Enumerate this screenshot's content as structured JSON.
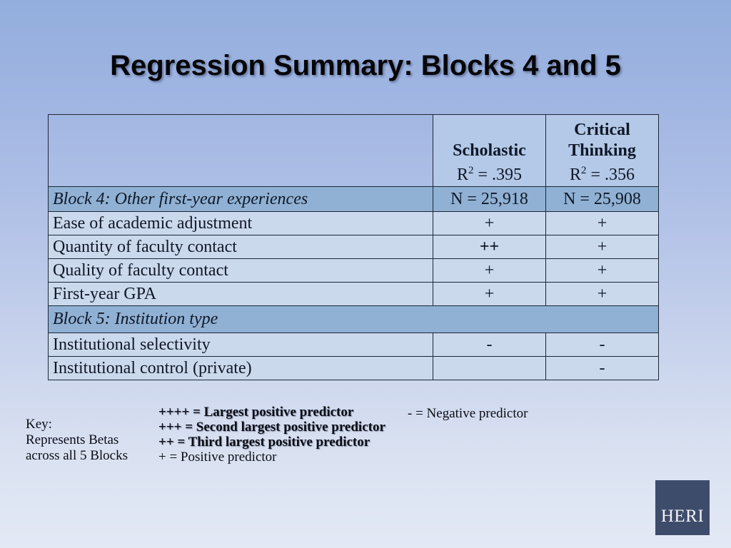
{
  "title": "Regression Summary: Blocks 4 and 5",
  "table": {
    "columns": {
      "scholastic": {
        "title": "Scholastic",
        "r2_base": "R",
        "r2_sup": "2",
        "r2_rest": " = .395"
      },
      "critical": {
        "title": "Critical Thinking",
        "r2_base": "R",
        "r2_sup": "2",
        "r2_rest": " = .356"
      }
    },
    "rows": [
      {
        "type": "section",
        "label": "Block 4: Other first-year experiences",
        "scholastic": "N = 25,918",
        "critical": "N = 25,908"
      },
      {
        "type": "item",
        "label": "Ease of academic adjustment",
        "scholastic": "+",
        "critical": "+"
      },
      {
        "type": "item",
        "label": "Quantity of faculty contact",
        "scholastic": "++",
        "critical": "+"
      },
      {
        "type": "item",
        "label": "Quality of faculty contact",
        "scholastic": "+",
        "critical": "+"
      },
      {
        "type": "item",
        "label": "First-year GPA",
        "scholastic": "+",
        "critical": "+"
      },
      {
        "type": "section",
        "label": "Block 5: Institution type",
        "scholastic": "",
        "critical": ""
      },
      {
        "type": "item",
        "label": "Institutional selectivity",
        "scholastic": "-",
        "critical": "-"
      },
      {
        "type": "item",
        "label": "Institutional control (private)",
        "scholastic": "",
        "critical": "-"
      }
    ]
  },
  "key_note": {
    "lines": [
      "Key:",
      "Represents Betas",
      "across all 5 Blocks"
    ]
  },
  "legend": {
    "positive_items": [
      "++++ = Largest positive predictor",
      "+++ = Second largest positive predictor",
      "++ = Third largest positive predictor",
      "+ = Positive predictor"
    ],
    "negative_item": "- = Negative predictor"
  },
  "logo": {
    "text": "HERI"
  },
  "colors": {
    "background_top": "#93aedd",
    "background_bottom": "#e3e9f5",
    "section_band": "#90b1d3",
    "item_row": "#cbd9ec",
    "header_cell": "#b4c8e7",
    "table_border": "#1c2737",
    "logo_background": "#3e4c6b",
    "logo_text": "#f2f3f6"
  }
}
